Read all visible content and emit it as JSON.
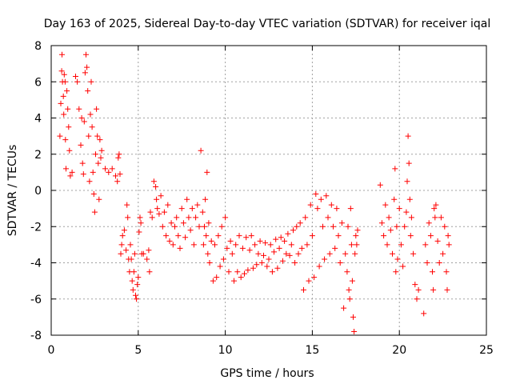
{
  "chart_data": {
    "type": "scatter",
    "title": "Day 163 of 2025, Sidereal Day-to-day VTEC variation (SDTVAR) for receiver iqal",
    "xlabel": "GPS time / hours",
    "ylabel": "SDTVAR / TECUs",
    "xlim": [
      0,
      25
    ],
    "ylim": [
      -8,
      8
    ],
    "xticks": [
      0,
      5,
      10,
      15,
      20,
      25
    ],
    "yticks": [
      -8,
      -6,
      -4,
      -2,
      0,
      2,
      4,
      6,
      8
    ],
    "xtick_labels": [
      "0",
      "5",
      "10",
      "15",
      "20",
      "25"
    ],
    "ytick_labels": [
      "-8",
      "-6",
      "-4",
      "-2",
      "0",
      "2",
      "4",
      "6",
      "8"
    ],
    "grid": true,
    "marker": "+",
    "color": "#ff0000",
    "series": [
      {
        "name": "SDTVAR",
        "points": [
          [
            0.5,
            3.0
          ],
          [
            0.55,
            4.8
          ],
          [
            0.6,
            6.6
          ],
          [
            0.62,
            7.5
          ],
          [
            0.65,
            6.0
          ],
          [
            0.7,
            5.2
          ],
          [
            0.72,
            4.2
          ],
          [
            0.75,
            6.4
          ],
          [
            0.8,
            6.0
          ],
          [
            0.82,
            2.8
          ],
          [
            0.85,
            1.2
          ],
          [
            0.9,
            5.5
          ],
          [
            0.95,
            4.5
          ],
          [
            1.0,
            3.5
          ],
          [
            1.05,
            2.2
          ],
          [
            1.1,
            0.8
          ],
          [
            1.2,
            1.0
          ],
          [
            1.4,
            6.3
          ],
          [
            1.5,
            6.0
          ],
          [
            1.6,
            4.5
          ],
          [
            1.7,
            2.5
          ],
          [
            1.75,
            4.0
          ],
          [
            1.8,
            1.5
          ],
          [
            1.85,
            0.9
          ],
          [
            1.9,
            3.8
          ],
          [
            1.95,
            6.5
          ],
          [
            2.0,
            7.5
          ],
          [
            2.05,
            6.8
          ],
          [
            2.1,
            5.5
          ],
          [
            2.15,
            3.0
          ],
          [
            2.2,
            0.5
          ],
          [
            2.25,
            4.2
          ],
          [
            2.3,
            6.0
          ],
          [
            2.35,
            3.5
          ],
          [
            2.4,
            1.0
          ],
          [
            2.45,
            -0.2
          ],
          [
            2.5,
            -1.2
          ],
          [
            2.55,
            2.0
          ],
          [
            2.6,
            4.5
          ],
          [
            2.65,
            3.0
          ],
          [
            2.7,
            1.5
          ],
          [
            2.75,
            -0.5
          ],
          [
            2.8,
            2.8
          ],
          [
            2.85,
            1.8
          ],
          [
            2.9,
            2.2
          ],
          [
            3.1,
            1.2
          ],
          [
            3.3,
            1.0
          ],
          [
            3.5,
            1.2
          ],
          [
            3.7,
            0.8
          ],
          [
            3.8,
            0.5
          ],
          [
            3.85,
            1.8
          ],
          [
            3.9,
            2.0
          ],
          [
            3.95,
            0.9
          ],
          [
            4.0,
            -3.5
          ],
          [
            4.05,
            -3.0
          ],
          [
            4.1,
            -2.5
          ],
          [
            4.2,
            -2.2
          ],
          [
            4.3,
            -3.3
          ],
          [
            4.35,
            -0.8
          ],
          [
            4.4,
            -1.5
          ],
          [
            4.45,
            -3.8
          ],
          [
            4.5,
            -4.5
          ],
          [
            4.55,
            -3.0
          ],
          [
            4.6,
            -3.8
          ],
          [
            4.65,
            -5.0
          ],
          [
            4.7,
            -5.5
          ],
          [
            4.75,
            -4.5
          ],
          [
            4.8,
            -3.5
          ],
          [
            4.85,
            -5.8
          ],
          [
            4.9,
            -6.0
          ],
          [
            4.95,
            -5.2
          ],
          [
            5.0,
            -4.8
          ],
          [
            5.05,
            -2.3
          ],
          [
            5.1,
            -1.5
          ],
          [
            5.15,
            -1.8
          ],
          [
            5.2,
            -3.5
          ],
          [
            5.3,
            -3.5
          ],
          [
            5.5,
            -3.8
          ],
          [
            5.6,
            -3.3
          ],
          [
            5.65,
            -4.5
          ],
          [
            5.7,
            -1.2
          ],
          [
            5.8,
            -1.5
          ],
          [
            5.9,
            0.5
          ],
          [
            6.0,
            0.2
          ],
          [
            6.05,
            -0.5
          ],
          [
            6.1,
            -1.0
          ],
          [
            6.2,
            -1.3
          ],
          [
            6.3,
            -0.3
          ],
          [
            6.4,
            -2.0
          ],
          [
            6.5,
            -1.2
          ],
          [
            6.6,
            -2.5
          ],
          [
            6.7,
            -0.8
          ],
          [
            6.8,
            -2.8
          ],
          [
            6.9,
            -1.8
          ],
          [
            7.0,
            -3.0
          ],
          [
            7.1,
            -2.0
          ],
          [
            7.2,
            -1.5
          ],
          [
            7.3,
            -2.5
          ],
          [
            7.4,
            -3.2
          ],
          [
            7.5,
            -1.0
          ],
          [
            7.6,
            -1.8
          ],
          [
            7.7,
            -2.6
          ],
          [
            7.8,
            -0.5
          ],
          [
            7.9,
            -1.5
          ],
          [
            8.0,
            -2.2
          ],
          [
            8.1,
            -1.0
          ],
          [
            8.2,
            -3.0
          ],
          [
            8.3,
            -1.5
          ],
          [
            8.4,
            -0.8
          ],
          [
            8.5,
            -2.0
          ],
          [
            8.6,
            2.2
          ],
          [
            8.7,
            -1.2
          ],
          [
            8.75,
            -3.0
          ],
          [
            8.8,
            -2.0
          ],
          [
            8.85,
            -0.5
          ],
          [
            8.9,
            -2.5
          ],
          [
            8.95,
            1.0
          ],
          [
            9.0,
            -3.5
          ],
          [
            9.05,
            -1.8
          ],
          [
            9.1,
            -4.0
          ],
          [
            9.2,
            -2.8
          ],
          [
            9.3,
            -5.0
          ],
          [
            9.4,
            -3.0
          ],
          [
            9.5,
            -4.8
          ],
          [
            9.6,
            -2.5
          ],
          [
            9.7,
            -4.2
          ],
          [
            9.8,
            -2.0
          ],
          [
            9.9,
            -3.8
          ],
          [
            10.0,
            -1.5
          ],
          [
            10.1,
            -3.2
          ],
          [
            10.2,
            -4.5
          ],
          [
            10.3,
            -2.8
          ],
          [
            10.4,
            -3.5
          ],
          [
            10.5,
            -5.0
          ],
          [
            10.6,
            -3.0
          ],
          [
            10.7,
            -4.5
          ],
          [
            10.8,
            -2.5
          ],
          [
            10.9,
            -4.8
          ],
          [
            11.0,
            -3.2
          ],
          [
            11.1,
            -4.6
          ],
          [
            11.2,
            -2.6
          ],
          [
            11.3,
            -4.4
          ],
          [
            11.4,
            -3.3
          ],
          [
            11.5,
            -2.5
          ],
          [
            11.6,
            -4.3
          ],
          [
            11.7,
            -3.0
          ],
          [
            11.8,
            -4.1
          ],
          [
            11.9,
            -3.5
          ],
          [
            12.0,
            -2.8
          ],
          [
            12.1,
            -4.0
          ],
          [
            12.2,
            -3.6
          ],
          [
            12.3,
            -2.9
          ],
          [
            12.4,
            -4.2
          ],
          [
            12.5,
            -3.8
          ],
          [
            12.6,
            -3.0
          ],
          [
            12.7,
            -4.5
          ],
          [
            12.8,
            -3.4
          ],
          [
            12.9,
            -2.7
          ],
          [
            13.0,
            -4.3
          ],
          [
            13.1,
            -3.2
          ],
          [
            13.2,
            -2.6
          ],
          [
            13.3,
            -3.9
          ],
          [
            13.4,
            -2.8
          ],
          [
            13.5,
            -3.5
          ],
          [
            13.6,
            -2.4
          ],
          [
            13.7,
            -3.6
          ],
          [
            13.8,
            -3.0
          ],
          [
            13.9,
            -2.2
          ],
          [
            14.0,
            -4.0
          ],
          [
            14.1,
            -2.0
          ],
          [
            14.2,
            -3.5
          ],
          [
            14.3,
            -1.8
          ],
          [
            14.4,
            -3.2
          ],
          [
            14.5,
            -5.5
          ],
          [
            14.6,
            -1.5
          ],
          [
            14.7,
            -3.0
          ],
          [
            14.8,
            -5.0
          ],
          [
            14.9,
            -0.8
          ],
          [
            15.0,
            -2.5
          ],
          [
            15.1,
            -4.8
          ],
          [
            15.2,
            -0.2
          ],
          [
            15.3,
            -1.0
          ],
          [
            15.4,
            -4.2
          ],
          [
            15.5,
            -0.5
          ],
          [
            15.6,
            -2.0
          ],
          [
            15.7,
            -3.8
          ],
          [
            15.8,
            -0.3
          ],
          [
            15.9,
            -1.5
          ],
          [
            16.0,
            -3.5
          ],
          [
            16.1,
            -0.8
          ],
          [
            16.2,
            -2.0
          ],
          [
            16.3,
            -3.2
          ],
          [
            16.4,
            -1.0
          ],
          [
            16.5,
            -2.5
          ],
          [
            16.6,
            -4.0
          ],
          [
            16.7,
            -1.8
          ],
          [
            16.8,
            -6.5
          ],
          [
            16.9,
            -3.5
          ],
          [
            17.0,
            -4.5
          ],
          [
            17.05,
            -2.0
          ],
          [
            17.1,
            -5.5
          ],
          [
            17.15,
            -6.0
          ],
          [
            17.2,
            -1.0
          ],
          [
            17.25,
            -3.0
          ],
          [
            17.3,
            -5.0
          ],
          [
            17.35,
            -7.0
          ],
          [
            17.4,
            -7.8
          ],
          [
            17.45,
            -3.5
          ],
          [
            17.5,
            -2.5
          ],
          [
            17.55,
            -3.0
          ],
          [
            17.6,
            -2.2
          ],
          [
            18.9,
            0.3
          ],
          [
            19.0,
            -1.8
          ],
          [
            19.1,
            -2.5
          ],
          [
            19.2,
            -0.8
          ],
          [
            19.3,
            -3.0
          ],
          [
            19.4,
            -1.5
          ],
          [
            19.5,
            -2.2
          ],
          [
            19.6,
            -3.5
          ],
          [
            19.7,
            -0.5
          ],
          [
            19.75,
            1.2
          ],
          [
            19.8,
            -4.5
          ],
          [
            19.85,
            -2.0
          ],
          [
            19.9,
            -3.8
          ],
          [
            20.0,
            -1.0
          ],
          [
            20.1,
            -3.0
          ],
          [
            20.2,
            -4.2
          ],
          [
            20.3,
            -2.0
          ],
          [
            20.4,
            -1.2
          ],
          [
            20.45,
            0.5
          ],
          [
            20.5,
            3.0
          ],
          [
            20.55,
            1.5
          ],
          [
            20.6,
            -0.5
          ],
          [
            20.65,
            -2.5
          ],
          [
            20.7,
            -1.5
          ],
          [
            20.8,
            -3.5
          ],
          [
            20.9,
            -5.2
          ],
          [
            21.0,
            -6.0
          ],
          [
            21.1,
            -5.5
          ],
          [
            21.4,
            -6.8
          ],
          [
            21.5,
            -3.0
          ],
          [
            21.6,
            -4.0
          ],
          [
            21.7,
            -1.8
          ],
          [
            21.8,
            -2.5
          ],
          [
            21.9,
            -4.5
          ],
          [
            21.95,
            -5.5
          ],
          [
            22.0,
            -1.0
          ],
          [
            22.05,
            -1.5
          ],
          [
            22.1,
            -0.8
          ],
          [
            22.2,
            -2.8
          ],
          [
            22.3,
            -4.0
          ],
          [
            22.4,
            -1.5
          ],
          [
            22.5,
            -3.5
          ],
          [
            22.6,
            -2.0
          ],
          [
            22.7,
            -4.5
          ],
          [
            22.75,
            -5.5
          ],
          [
            22.8,
            -2.5
          ],
          [
            22.85,
            -3.0
          ]
        ]
      }
    ]
  }
}
